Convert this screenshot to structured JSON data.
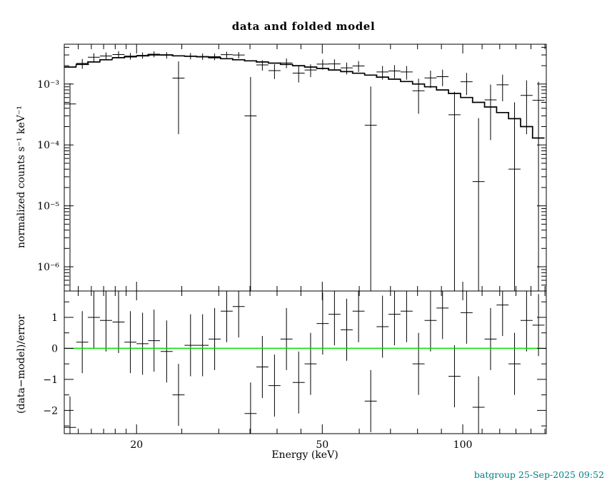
{
  "window": {
    "title": "data and folded model",
    "footer": "batgroup 25-Sep-2025 09:52"
  },
  "colors": {
    "background": "#ffffff",
    "axis": "#000000",
    "model": "#000000",
    "data": "#000000",
    "zero_line": "#00dd00",
    "footer_text": "#008080"
  },
  "chart_data": {
    "type": "scatter",
    "title": "data and folded model",
    "xlabel": "Energy (keV)",
    "ylabel_top": "normalized counts s⁻¹ keV⁻¹",
    "ylabel_bottom": "(data−model)/error",
    "x_scale": "log",
    "y_scale_top": "log",
    "y_scale_bottom": "linear",
    "xlim": [
      14,
      151
    ],
    "ylim_top": [
      4e-07,
      0.0045
    ],
    "ylim_bottom": [
      -2.75,
      1.85
    ],
    "x_major_ticks": [
      20,
      50,
      100
    ],
    "x_tick_labels": [
      "20",
      "50",
      "100"
    ],
    "x_minor_ticks": [
      15,
      16,
      17,
      18,
      19,
      25,
      30,
      35,
      40,
      45,
      60,
      70,
      80,
      90,
      110,
      120,
      130,
      140,
      150
    ],
    "y_ticks_top": [
      {
        "v": 1e-06,
        "label": "10⁻⁶"
      },
      {
        "v": 1e-05,
        "label": "10⁻⁵"
      },
      {
        "v": 0.0001,
        "label": "10⁻⁴"
      },
      {
        "v": 0.001,
        "label": "10⁻³"
      }
    ],
    "y_ticks_bottom": [
      {
        "v": -2,
        "label": "−2"
      },
      {
        "v": -1,
        "label": "−1"
      },
      {
        "v": 0,
        "label": "0"
      },
      {
        "v": 1,
        "label": "1"
      }
    ],
    "y_minor_ticks_bottom": [
      -2.5,
      -1.5,
      -0.5,
      0.5,
      1.5
    ],
    "bin_half_factor": 1.0301,
    "residual_err": 1.0,
    "grid": false,
    "legend": false,
    "points": [
      {
        "e": 14.4,
        "m": 0.0019,
        "y": 0.00047,
        "err": 0.00056,
        "r": -2.55
      },
      {
        "e": 15.3,
        "m": 0.0021,
        "y": 0.00218,
        "err": 0.0004,
        "r": 0.2
      },
      {
        "e": 16.2,
        "m": 0.0023,
        "y": 0.00275,
        "err": 0.00045,
        "r": 1.0
      },
      {
        "e": 17.2,
        "m": 0.0025,
        "y": 0.00288,
        "err": 0.00042,
        "r": 0.9
      },
      {
        "e": 18.3,
        "m": 0.0027,
        "y": 0.00304,
        "err": 0.0004,
        "r": 0.85
      },
      {
        "e": 19.4,
        "m": 0.0028,
        "y": 0.00287,
        "err": 0.00036,
        "r": 0.2
      },
      {
        "e": 20.6,
        "m": 0.0029,
        "y": 0.00295,
        "err": 0.00035,
        "r": 0.15
      },
      {
        "e": 21.8,
        "m": 0.003,
        "y": 0.00309,
        "err": 0.00035,
        "r": 0.25
      },
      {
        "e": 23.2,
        "m": 0.003,
        "y": 0.00297,
        "err": 0.00035,
        "r": -0.1
      },
      {
        "e": 24.6,
        "m": 0.0029,
        "y": 0.00125,
        "err": 0.0011,
        "r": -1.5
      },
      {
        "e": 26.1,
        "m": 0.00285,
        "y": 0.00288,
        "err": 0.00034,
        "r": 0.1
      },
      {
        "e": 27.7,
        "m": 0.0028,
        "y": 0.00283,
        "err": 0.00034,
        "r": 0.1
      },
      {
        "e": 29.4,
        "m": 0.0027,
        "y": 0.00281,
        "err": 0.00035,
        "r": 0.3
      },
      {
        "e": 31.2,
        "m": 0.0026,
        "y": 0.00303,
        "err": 0.00036,
        "r": 1.2
      },
      {
        "e": 33.1,
        "m": 0.0025,
        "y": 0.00299,
        "err": 0.00036,
        "r": 1.35
      },
      {
        "e": 35.1,
        "m": 0.0024,
        "y": 0.0003,
        "err": 0.001,
        "r": -2.1
      },
      {
        "e": 37.2,
        "m": 0.0023,
        "y": 0.00206,
        "err": 0.0004,
        "r": -0.6
      },
      {
        "e": 39.5,
        "m": 0.0022,
        "y": 0.00166,
        "err": 0.00045,
        "r": -1.2
      },
      {
        "e": 41.9,
        "m": 0.0021,
        "y": 0.00222,
        "err": 0.0004,
        "r": 0.3
      },
      {
        "e": 44.5,
        "m": 0.002,
        "y": 0.00151,
        "err": 0.00045,
        "r": -1.1
      },
      {
        "e": 47.2,
        "m": 0.0019,
        "y": 0.0017,
        "err": 0.0004,
        "r": -0.5
      },
      {
        "e": 50.1,
        "m": 0.0018,
        "y": 0.00212,
        "err": 0.0004,
        "r": 0.8
      },
      {
        "e": 53.1,
        "m": 0.0017,
        "y": 0.00214,
        "err": 0.0004,
        "r": 1.1
      },
      {
        "e": 56.4,
        "m": 0.0016,
        "y": 0.00184,
        "err": 0.0004,
        "r": 0.6
      },
      {
        "e": 59.8,
        "m": 0.0015,
        "y": 0.00198,
        "err": 0.0004,
        "r": 1.2
      },
      {
        "e": 63.5,
        "m": 0.0014,
        "y": 0.00021,
        "err": 0.0007,
        "r": -1.7
      },
      {
        "e": 67.3,
        "m": 0.0013,
        "y": 0.00158,
        "err": 0.0004,
        "r": 0.7
      },
      {
        "e": 71.4,
        "m": 0.0012,
        "y": 0.00164,
        "err": 0.0004,
        "r": 1.1
      },
      {
        "e": 75.8,
        "m": 0.0011,
        "y": 0.00158,
        "err": 0.0004,
        "r": 1.2
      },
      {
        "e": 80.4,
        "m": 0.001,
        "y": 0.000775,
        "err": 0.00045,
        "r": -0.5
      },
      {
        "e": 85.3,
        "m": 0.0009,
        "y": 0.00126,
        "err": 0.0004,
        "r": 0.9
      },
      {
        "e": 90.5,
        "m": 0.0008,
        "y": 0.00132,
        "err": 0.0004,
        "r": 1.3
      },
      {
        "e": 96.0,
        "m": 0.0007,
        "y": 0.000313,
        "err": 0.00043,
        "r": -0.9
      },
      {
        "e": 101.9,
        "m": 0.0006,
        "y": 0.00109,
        "err": 0.00043,
        "r": 1.15
      },
      {
        "e": 108.1,
        "m": 0.0005,
        "y": 2.5e-05,
        "err": 0.00025,
        "r": -1.9
      },
      {
        "e": 114.7,
        "m": 0.00042,
        "y": 0.00055,
        "err": 0.00043,
        "r": 0.3
      },
      {
        "e": 121.7,
        "m": 0.00034,
        "y": 0.00097,
        "err": 0.00045,
        "r": 1.4
      },
      {
        "e": 129.1,
        "m": 0.00027,
        "y": 4e-05,
        "err": 0.00046,
        "r": -0.5
      },
      {
        "e": 137.0,
        "m": 0.0002,
        "y": 0.00065,
        "err": 0.0005,
        "r": 0.9
      },
      {
        "e": 145.3,
        "m": 0.00013,
        "y": 0.00054,
        "err": 0.00055,
        "r": 0.75
      }
    ]
  }
}
